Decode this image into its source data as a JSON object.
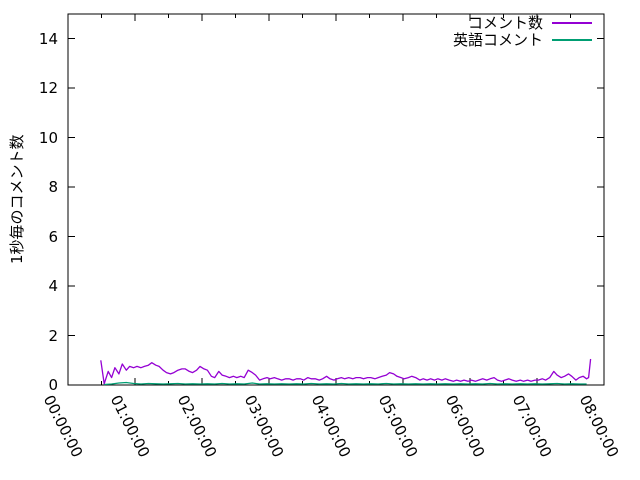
{
  "chart_data": {
    "type": "line",
    "title": "",
    "xlabel": "",
    "ylabel": "1秒毎のコメント数",
    "x_tick_labels": [
      "00:00:00",
      "01:00:00",
      "02:00:00",
      "03:00:00",
      "04:00:00",
      "05:00:00",
      "06:00:00",
      "07:00:00",
      "08:00:00"
    ],
    "x_tick_hours": [
      0,
      1,
      2,
      3,
      4,
      5,
      6,
      7,
      8
    ],
    "x_minor_step_hours": 0.5,
    "y_tick_labels": [
      "0",
      "2",
      "4",
      "6",
      "8",
      "10",
      "12",
      "14"
    ],
    "y_tick_values": [
      0,
      2,
      4,
      6,
      8,
      10,
      12,
      14
    ],
    "xlim_hours": [
      0,
      8
    ],
    "ylim": [
      0,
      15
    ],
    "grid": false,
    "legend_position": "top-right-inside",
    "background": "#ffffff",
    "axis_color": "#000000",
    "series": [
      {
        "name": "コメント数",
        "color": "#9400D3",
        "points": [
          [
            0.49,
            1.0
          ],
          [
            0.54,
            0.05
          ],
          [
            0.6,
            0.55
          ],
          [
            0.65,
            0.3
          ],
          [
            0.7,
            0.7
          ],
          [
            0.76,
            0.45
          ],
          [
            0.81,
            0.85
          ],
          [
            0.87,
            0.6
          ],
          [
            0.92,
            0.75
          ],
          [
            0.98,
            0.7
          ],
          [
            1.03,
            0.75
          ],
          [
            1.09,
            0.7
          ],
          [
            1.14,
            0.75
          ],
          [
            1.2,
            0.8
          ],
          [
            1.25,
            0.9
          ],
          [
            1.31,
            0.8
          ],
          [
            1.36,
            0.75
          ],
          [
            1.42,
            0.6
          ],
          [
            1.47,
            0.5
          ],
          [
            1.53,
            0.45
          ],
          [
            1.58,
            0.5
          ],
          [
            1.64,
            0.6
          ],
          [
            1.7,
            0.65
          ],
          [
            1.75,
            0.65
          ],
          [
            1.81,
            0.55
          ],
          [
            1.86,
            0.5
          ],
          [
            1.92,
            0.6
          ],
          [
            1.97,
            0.75
          ],
          [
            2.03,
            0.65
          ],
          [
            2.08,
            0.6
          ],
          [
            2.14,
            0.35
          ],
          [
            2.19,
            0.3
          ],
          [
            2.25,
            0.55
          ],
          [
            2.3,
            0.4
          ],
          [
            2.36,
            0.35
          ],
          [
            2.41,
            0.3
          ],
          [
            2.47,
            0.35
          ],
          [
            2.52,
            0.3
          ],
          [
            2.58,
            0.35
          ],
          [
            2.63,
            0.3
          ],
          [
            2.69,
            0.6
          ],
          [
            2.75,
            0.5
          ],
          [
            2.8,
            0.4
          ],
          [
            2.86,
            0.2
          ],
          [
            2.91,
            0.25
          ],
          [
            2.97,
            0.3
          ],
          [
            3.02,
            0.25
          ],
          [
            3.08,
            0.3
          ],
          [
            3.13,
            0.25
          ],
          [
            3.19,
            0.2
          ],
          [
            3.25,
            0.25
          ],
          [
            3.3,
            0.25
          ],
          [
            3.36,
            0.2
          ],
          [
            3.41,
            0.25
          ],
          [
            3.47,
            0.25
          ],
          [
            3.52,
            0.2
          ],
          [
            3.58,
            0.3
          ],
          [
            3.63,
            0.25
          ],
          [
            3.69,
            0.25
          ],
          [
            3.75,
            0.2
          ],
          [
            3.8,
            0.25
          ],
          [
            3.86,
            0.35
          ],
          [
            3.91,
            0.25
          ],
          [
            3.97,
            0.2
          ],
          [
            4.02,
            0.25
          ],
          [
            4.08,
            0.3
          ],
          [
            4.13,
            0.25
          ],
          [
            4.19,
            0.3
          ],
          [
            4.25,
            0.25
          ],
          [
            4.3,
            0.3
          ],
          [
            4.36,
            0.3
          ],
          [
            4.41,
            0.25
          ],
          [
            4.47,
            0.3
          ],
          [
            4.52,
            0.3
          ],
          [
            4.58,
            0.25
          ],
          [
            4.63,
            0.3
          ],
          [
            4.69,
            0.35
          ],
          [
            4.75,
            0.4
          ],
          [
            4.8,
            0.5
          ],
          [
            4.86,
            0.45
          ],
          [
            4.91,
            0.35
          ],
          [
            4.97,
            0.3
          ],
          [
            5.02,
            0.25
          ],
          [
            5.08,
            0.3
          ],
          [
            5.13,
            0.35
          ],
          [
            5.19,
            0.3
          ],
          [
            5.25,
            0.2
          ],
          [
            5.3,
            0.25
          ],
          [
            5.36,
            0.2
          ],
          [
            5.41,
            0.25
          ],
          [
            5.47,
            0.2
          ],
          [
            5.52,
            0.25
          ],
          [
            5.58,
            0.2
          ],
          [
            5.63,
            0.25
          ],
          [
            5.69,
            0.2
          ],
          [
            5.75,
            0.15
          ],
          [
            5.8,
            0.2
          ],
          [
            5.86,
            0.15
          ],
          [
            5.91,
            0.2
          ],
          [
            5.97,
            0.15
          ],
          [
            6.02,
            0.2
          ],
          [
            6.08,
            0.15
          ],
          [
            6.13,
            0.2
          ],
          [
            6.19,
            0.25
          ],
          [
            6.25,
            0.2
          ],
          [
            6.3,
            0.25
          ],
          [
            6.36,
            0.3
          ],
          [
            6.41,
            0.2
          ],
          [
            6.47,
            0.15
          ],
          [
            6.52,
            0.2
          ],
          [
            6.58,
            0.25
          ],
          [
            6.63,
            0.2
          ],
          [
            6.69,
            0.15
          ],
          [
            6.75,
            0.2
          ],
          [
            6.8,
            0.15
          ],
          [
            6.86,
            0.2
          ],
          [
            6.91,
            0.15
          ],
          [
            6.97,
            0.2
          ],
          [
            7.02,
            0.2
          ],
          [
            7.08,
            0.25
          ],
          [
            7.13,
            0.2
          ],
          [
            7.19,
            0.3
          ],
          [
            7.25,
            0.55
          ],
          [
            7.3,
            0.4
          ],
          [
            7.36,
            0.3
          ],
          [
            7.41,
            0.35
          ],
          [
            7.47,
            0.45
          ],
          [
            7.52,
            0.35
          ],
          [
            7.58,
            0.2
          ],
          [
            7.63,
            0.3
          ],
          [
            7.69,
            0.35
          ],
          [
            7.74,
            0.25
          ],
          [
            7.77,
            0.3
          ],
          [
            7.8,
            1.05
          ]
        ]
      },
      {
        "name": "英語コメント",
        "color": "#009E73",
        "points": [
          [
            0.54,
            0.02
          ],
          [
            0.65,
            0.04
          ],
          [
            0.76,
            0.08
          ],
          [
            0.87,
            0.1
          ],
          [
            0.98,
            0.06
          ],
          [
            1.09,
            0.04
          ],
          [
            1.2,
            0.06
          ],
          [
            1.31,
            0.05
          ],
          [
            1.42,
            0.04
          ],
          [
            1.53,
            0.05
          ],
          [
            1.64,
            0.06
          ],
          [
            1.75,
            0.04
          ],
          [
            1.86,
            0.05
          ],
          [
            1.97,
            0.04
          ],
          [
            2.08,
            0.05
          ],
          [
            2.19,
            0.04
          ],
          [
            2.3,
            0.06
          ],
          [
            2.41,
            0.04
          ],
          [
            2.52,
            0.05
          ],
          [
            2.63,
            0.04
          ],
          [
            2.75,
            0.08
          ],
          [
            2.86,
            0.04
          ],
          [
            2.97,
            0.05
          ],
          [
            3.08,
            0.04
          ],
          [
            3.19,
            0.05
          ],
          [
            3.3,
            0.04
          ],
          [
            3.41,
            0.05
          ],
          [
            3.52,
            0.04
          ],
          [
            3.63,
            0.06
          ],
          [
            3.75,
            0.04
          ],
          [
            3.86,
            0.05
          ],
          [
            3.97,
            0.04
          ],
          [
            4.08,
            0.06
          ],
          [
            4.19,
            0.04
          ],
          [
            4.3,
            0.05
          ],
          [
            4.41,
            0.04
          ],
          [
            4.52,
            0.05
          ],
          [
            4.63,
            0.04
          ],
          [
            4.75,
            0.06
          ],
          [
            4.86,
            0.04
          ],
          [
            4.97,
            0.05
          ],
          [
            5.08,
            0.04
          ],
          [
            5.19,
            0.05
          ],
          [
            5.3,
            0.04
          ],
          [
            5.41,
            0.05
          ],
          [
            5.52,
            0.04
          ],
          [
            5.63,
            0.05
          ],
          [
            5.75,
            0.04
          ],
          [
            5.86,
            0.05
          ],
          [
            5.97,
            0.04
          ],
          [
            6.08,
            0.05
          ],
          [
            6.19,
            0.04
          ],
          [
            6.3,
            0.06
          ],
          [
            6.41,
            0.04
          ],
          [
            6.52,
            0.05
          ],
          [
            6.63,
            0.04
          ],
          [
            6.75,
            0.05
          ],
          [
            6.86,
            0.04
          ],
          [
            6.97,
            0.05
          ],
          [
            7.08,
            0.04
          ],
          [
            7.19,
            0.05
          ],
          [
            7.3,
            0.06
          ],
          [
            7.41,
            0.04
          ],
          [
            7.52,
            0.05
          ],
          [
            7.63,
            0.04
          ],
          [
            7.74,
            0.04
          ]
        ]
      }
    ]
  }
}
